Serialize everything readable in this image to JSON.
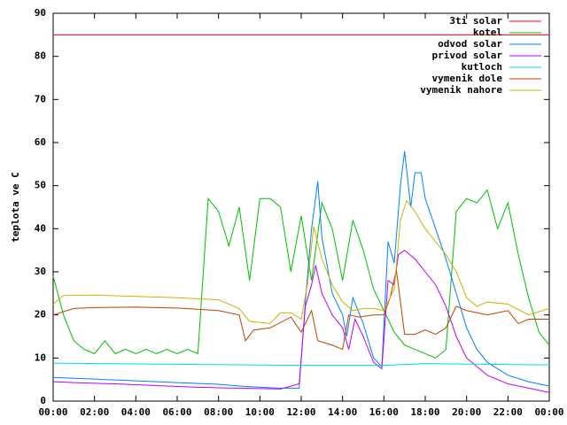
{
  "chart_data": {
    "type": "line",
    "ylabel": "teplota ve C",
    "xlim": [
      0,
      24
    ],
    "ylim": [
      0,
      90
    ],
    "yticks": [
      0,
      10,
      20,
      30,
      40,
      50,
      60,
      70,
      80,
      90
    ],
    "xticks": [
      {
        "value": 0,
        "label": "00:00"
      },
      {
        "value": 2,
        "label": "02:00"
      },
      {
        "value": 4,
        "label": "04:00"
      },
      {
        "value": 6,
        "label": "06:00"
      },
      {
        "value": 8,
        "label": "08:00"
      },
      {
        "value": 10,
        "label": "10:00"
      },
      {
        "value": 12,
        "label": "12:00"
      },
      {
        "value": 14,
        "label": "14:00"
      },
      {
        "value": 16,
        "label": "16:00"
      },
      {
        "value": 18,
        "label": "18:00"
      },
      {
        "value": 20,
        "label": "20:00"
      },
      {
        "value": 22,
        "label": "22:00"
      },
      {
        "value": 24,
        "label": "00:00"
      }
    ],
    "legend": "top-right",
    "grid": false,
    "series": [
      {
        "name": "3ti solar",
        "color": "#ff0000",
        "x": [
          0,
          24
        ],
        "values": [
          85,
          85
        ]
      },
      {
        "name": "kotel",
        "color": "#00c000",
        "x": [
          0,
          0.5,
          1,
          1.5,
          2,
          2.5,
          3,
          3.5,
          4,
          4.5,
          5,
          5.5,
          6,
          6.5,
          7,
          7.5,
          8,
          8.5,
          9,
          9.5,
          10,
          10.5,
          11,
          11.5,
          12,
          12.5,
          13,
          13.5,
          14,
          14.5,
          15,
          15.5,
          16,
          16.5,
          17,
          17.5,
          18,
          18.5,
          19,
          19.5,
          20,
          20.5,
          21,
          21.5,
          22,
          22.5,
          23,
          23.5,
          24
        ],
        "values": [
          29,
          20,
          14,
          12,
          11,
          14,
          11,
          12,
          11,
          12,
          11,
          12,
          11,
          12,
          11,
          47,
          44,
          36,
          45,
          28,
          47,
          47,
          45,
          30,
          43,
          28,
          46,
          40,
          28,
          42,
          35,
          26,
          21,
          16,
          13,
          12,
          11,
          10,
          12,
          44,
          47,
          46,
          49,
          40,
          46,
          34,
          24,
          16,
          13
        ]
      },
      {
        "name": "odvod solar",
        "color": "#0080ff",
        "x": [
          0,
          1,
          2,
          3,
          4,
          5,
          6,
          7,
          8,
          9,
          10,
          11,
          11.9,
          12.2,
          12.5,
          12.8,
          13,
          13.5,
          14,
          14.2,
          14.5,
          15,
          15.5,
          15.9,
          16.2,
          16.5,
          16.8,
          17,
          17.3,
          17.5,
          17.8,
          18,
          18.5,
          19,
          19.5,
          20,
          20.5,
          21,
          22,
          23,
          24
        ],
        "values": [
          5.5,
          5.3,
          5.1,
          4.9,
          4.7,
          4.5,
          4.3,
          4.1,
          3.9,
          3.5,
          3.2,
          3,
          3,
          23,
          40,
          51,
          38,
          25,
          20,
          15,
          24,
          18,
          10,
          8,
          37,
          32,
          50,
          58,
          45,
          53,
          53,
          47,
          40,
          33,
          25,
          17,
          12,
          9,
          6,
          4.5,
          3.5
        ]
      },
      {
        "name": "privod solar",
        "color": "#c000ff",
        "x": [
          0,
          1,
          3,
          5,
          7,
          9,
          11,
          11.9,
          12.2,
          12.5,
          12.7,
          13,
          13.5,
          14,
          14.3,
          14.6,
          15,
          15.5,
          15.9,
          16.2,
          16.5,
          16.7,
          17,
          17.5,
          18,
          18.5,
          19,
          19.5,
          20,
          21,
          22,
          23,
          24
        ],
        "values": [
          4.5,
          4.3,
          4,
          3.6,
          3.2,
          3,
          2.8,
          4,
          22,
          27,
          31.5,
          25,
          20,
          17,
          12,
          19,
          15,
          9,
          7.5,
          28,
          27,
          34,
          35,
          33,
          30,
          27,
          22,
          15,
          10,
          6,
          4,
          3,
          2
        ]
      },
      {
        "name": "kutloch",
        "color": "#00dddd",
        "x": [
          0,
          12,
          16,
          18,
          24
        ],
        "values": [
          8.8,
          8.3,
          8.3,
          8.7,
          8.4
        ]
      },
      {
        "name": "vymenik dole",
        "color": "#c04000",
        "x": [
          0,
          1,
          2,
          4,
          6,
          8,
          9,
          9.3,
          9.7,
          10.5,
          11.5,
          12,
          12.5,
          12.8,
          13.5,
          14,
          14.3,
          14.8,
          15.5,
          16,
          16.3,
          16.6,
          17,
          17.5,
          18,
          18.5,
          19,
          19.5,
          20,
          21,
          22,
          22.5,
          23,
          24
        ],
        "values": [
          20,
          21.5,
          21.7,
          21.8,
          21.6,
          21,
          20,
          14,
          16.5,
          17,
          19.5,
          16,
          21,
          14,
          13,
          12,
          20,
          19.5,
          20,
          20,
          24,
          30.5,
          15.5,
          15.5,
          16.5,
          15.5,
          17,
          22,
          21,
          20,
          21,
          18,
          19,
          19
        ]
      },
      {
        "name": "vymenik nahore",
        "color": "#c8b400",
        "x": [
          0,
          0.5,
          2,
          4,
          6,
          8,
          9,
          9.5,
          10.5,
          11,
          11.5,
          12,
          12.3,
          12.6,
          13,
          13.5,
          14,
          14.5,
          15,
          15.5,
          16,
          16.5,
          16.8,
          17.1,
          17.5,
          18,
          18.5,
          19,
          19.5,
          20,
          20.5,
          21,
          22,
          23,
          24
        ],
        "values": [
          22.5,
          24.5,
          24.6,
          24.3,
          24,
          23.5,
          21.5,
          18.5,
          18,
          20.5,
          20.5,
          19,
          27,
          40.5,
          33,
          27,
          23,
          21,
          21.5,
          21.5,
          21,
          26,
          42,
          46.5,
          44,
          40,
          37,
          34,
          30,
          24,
          22,
          23,
          22.5,
          20,
          21.5
        ]
      }
    ]
  }
}
